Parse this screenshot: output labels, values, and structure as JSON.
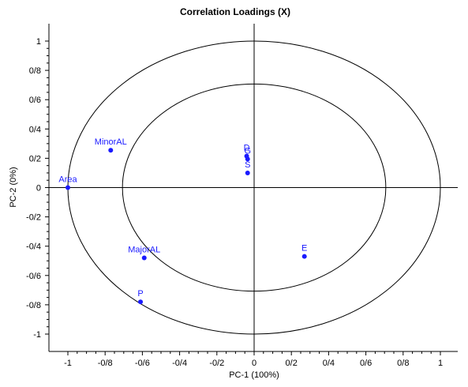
{
  "chart_data": {
    "type": "scatter",
    "title": "Correlation Loadings (X)",
    "xlabel": "PC-1 (100%)",
    "ylabel": "PC-2 (0%)",
    "xlim": [
      -1.1,
      1.1
    ],
    "ylim": [
      -1.1,
      1.1
    ],
    "x_ticks": [
      -1,
      -0.8,
      -0.6,
      -0.4,
      -0.2,
      0,
      0.2,
      0.4,
      0.6,
      0.8,
      1
    ],
    "x_tick_labels": [
      "-1",
      "-0/8",
      "-0/6",
      "-0/4",
      "-0/2",
      "0",
      "0/2",
      "0/4",
      "0/6",
      "0/8",
      "1"
    ],
    "y_ticks": [
      1,
      0.8,
      0.6,
      0.4,
      0.2,
      0,
      -0.2,
      -0.4,
      -0.6,
      -0.8,
      -1
    ],
    "y_tick_labels": [
      "1",
      "0/8",
      "0/6",
      "0/4",
      "0/2",
      "0",
      "-0/2",
      "-0/4",
      "-0/6",
      "-0/8",
      "-1"
    ],
    "circles": [
      1.0,
      0.707
    ],
    "grid": false,
    "point_color": "#1a1aff",
    "points": [
      {
        "label": "Area",
        "x": -1.0,
        "y": 0.0
      },
      {
        "label": "MinorAL",
        "x": -0.77,
        "y": 0.255
      },
      {
        "label": "D",
        "x": -0.04,
        "y": 0.215
      },
      {
        "label": "G",
        "x": -0.035,
        "y": 0.195
      },
      {
        "label": "S",
        "x": -0.035,
        "y": 0.1
      },
      {
        "label": "MajorAL",
        "x": -0.59,
        "y": -0.48
      },
      {
        "label": "P",
        "x": -0.61,
        "y": -0.78
      },
      {
        "label": "E",
        "x": 0.27,
        "y": -0.47
      }
    ]
  }
}
